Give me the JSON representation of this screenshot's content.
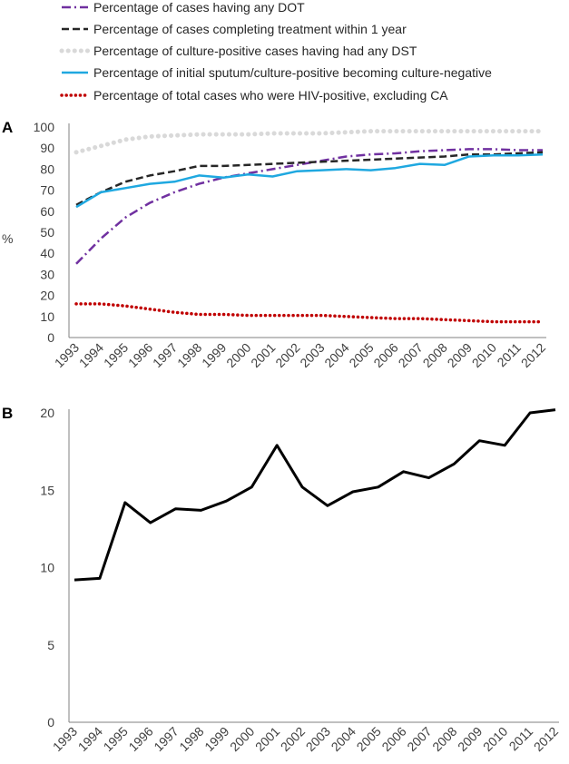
{
  "chart_data": [
    {
      "type": "line",
      "panel_label": "A",
      "ylabel": "%",
      "xlabel": "",
      "ylim": [
        0,
        100
      ],
      "yticks": [
        0,
        10,
        20,
        30,
        40,
        50,
        60,
        70,
        80,
        90,
        100
      ],
      "categories": [
        "1993",
        "1994",
        "1995",
        "1996",
        "1997",
        "1998",
        "1999",
        "2000",
        "2001",
        "2002",
        "2003",
        "2004",
        "2005",
        "2006",
        "2007",
        "2008",
        "2009",
        "2010",
        "2011",
        "2012"
      ],
      "legend_position": "top",
      "series": [
        {
          "name": "Percentage of cases having any DOT",
          "color": "#7030a0",
          "dash": "dashdot",
          "values": [
            35,
            47,
            57,
            64,
            69,
            73,
            76,
            78,
            80,
            82,
            84,
            86,
            87,
            87.5,
            88.5,
            89,
            89.5,
            89.5,
            89,
            89
          ]
        },
        {
          "name": "Percentage of cases completing treatment within 1 year",
          "color": "#262626",
          "dash": "dash",
          "values": [
            63,
            69,
            74,
            77,
            79,
            81.5,
            81.5,
            82,
            82.5,
            83,
            83.5,
            84,
            84.5,
            85,
            85.5,
            86,
            87,
            87,
            87.5,
            88
          ]
        },
        {
          "name": "Percentage of culture-positive cases having had any DST",
          "color": "#d9d9d9",
          "dash": "dot",
          "values": [
            88,
            91,
            94,
            95.5,
            96,
            96.5,
            96.5,
            96.5,
            97,
            97,
            97,
            97.5,
            98,
            98,
            98,
            98,
            98,
            98,
            98,
            98
          ]
        },
        {
          "name": "Percentage of initial sputum/culture-positive becoming culture-negative",
          "color": "#1fa8e0",
          "dash": "solid",
          "values": [
            62,
            69,
            71,
            73,
            74,
            77,
            76,
            77.5,
            76.5,
            79,
            79.5,
            80,
            79.5,
            80.5,
            82.5,
            82,
            86,
            86.5,
            86.5,
            87
          ]
        },
        {
          "name": "Percentage of total cases who were HIV-positive, excluding CA",
          "color": "#c00000",
          "dash": "dotround",
          "values": [
            16,
            16,
            15,
            13.5,
            12,
            11,
            11,
            10.5,
            10.5,
            10.5,
            10.5,
            10,
            9.5,
            9,
            9,
            8.5,
            8,
            7.5,
            7.5,
            7.5
          ]
        }
      ]
    },
    {
      "type": "line",
      "panel_label": "B",
      "ylabel": "",
      "xlabel": "",
      "ylim": [
        0,
        20
      ],
      "yticks": [
        0,
        5,
        10,
        15,
        20
      ],
      "categories": [
        "1993",
        "1994",
        "1995",
        "1996",
        "1997",
        "1998",
        "1999",
        "2000",
        "2001",
        "2002",
        "2003",
        "2004",
        "2005",
        "2006",
        "2007",
        "2008",
        "2009",
        "2010",
        "2011",
        "2012"
      ],
      "series": [
        {
          "name": "",
          "color": "#000000",
          "dash": "solid",
          "values": [
            9.2,
            9.3,
            14.2,
            12.9,
            13.8,
            13.7,
            14.3,
            15.2,
            17.9,
            15.2,
            14.0,
            14.9,
            15.2,
            16.2,
            15.8,
            16.7,
            18.2,
            17.9,
            20.0,
            20.2
          ]
        }
      ]
    }
  ]
}
